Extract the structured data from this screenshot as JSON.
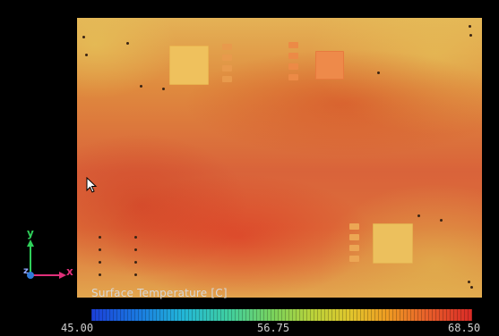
{
  "legend": {
    "title": "Surface Temperature [C]",
    "min_label": "45.00",
    "mid_label": "56.75",
    "max_label": "68.50",
    "colors": [
      "#1b3fd8",
      "#22b6d8",
      "#7bd25a",
      "#e1c62c",
      "#ee9a22",
      "#d92a26"
    ]
  },
  "axes": {
    "y_label": "y",
    "x_label": "x",
    "z_label": "z"
  },
  "palette": {
    "board_base": "#df8a3e",
    "hot": "#d92a26",
    "warm": "#e4b256"
  }
}
